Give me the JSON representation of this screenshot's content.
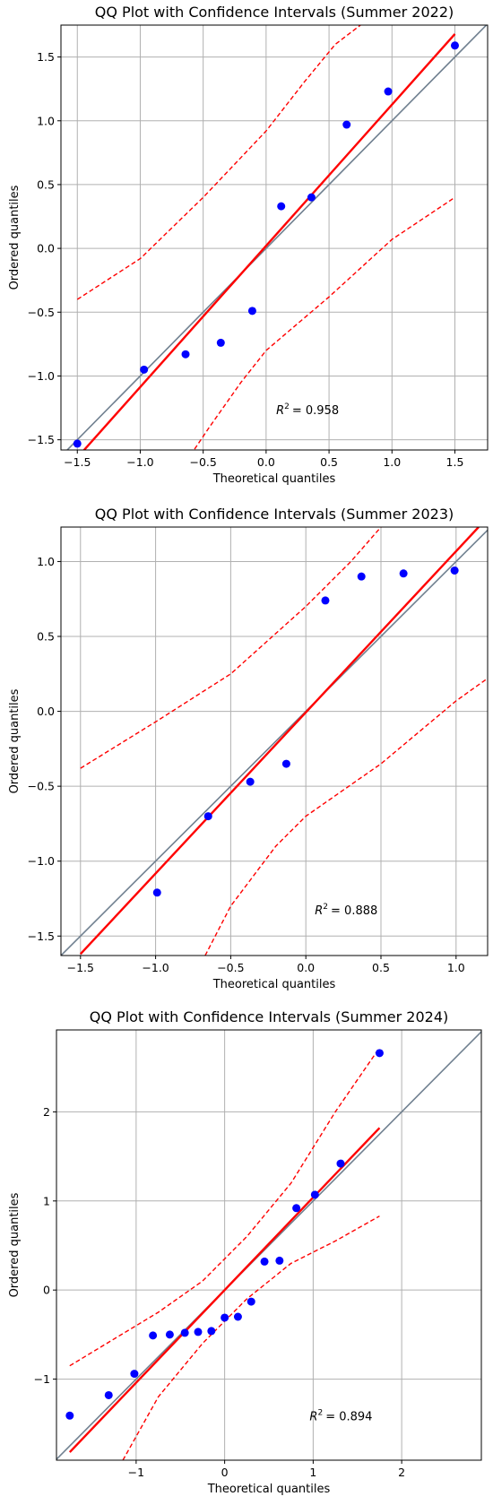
{
  "chart_data": [
    {
      "type": "scatter",
      "title": "QQ Plot with Confidence Intervals (Summer 2022)",
      "xlabel": "Theoretical quantiles",
      "ylabel": "Ordered quantiles",
      "annotation": {
        "prefix": "R",
        "sup": "2",
        "value": "= 0.958",
        "x": 0.08,
        "y": -1.27
      },
      "xlim": [
        -1.63,
        1.76
      ],
      "ylim": [
        -1.58,
        1.75
      ],
      "xticks": [
        -1.5,
        -1.0,
        -0.5,
        0.0,
        0.5,
        1.0,
        1.5
      ],
      "xtick_labels": [
        "−1.5",
        "−1.0",
        "−0.5",
        "0.0",
        "0.5",
        "1.0",
        "1.5"
      ],
      "yticks": [
        -1.5,
        -1.0,
        -0.5,
        0.0,
        0.5,
        1.0,
        1.5
      ],
      "ytick_labels": [
        "−1.5",
        "−1.0",
        "−0.5",
        "0.0",
        "0.5",
        "1.0",
        "1.5"
      ],
      "grid": true,
      "points": {
        "x": [
          -1.5,
          -0.97,
          -0.64,
          -0.36,
          -0.11,
          0.12,
          0.36,
          0.64,
          0.97,
          1.5
        ],
        "y": [
          -1.53,
          -0.95,
          -0.83,
          -0.74,
          -0.49,
          0.33,
          0.4,
          0.97,
          1.23,
          1.59
        ],
        "color": "#0000ff"
      },
      "reference_line": {
        "slope": 1,
        "intercept": 0,
        "color": "#708090"
      },
      "fit_line": {
        "x": [
          -1.5,
          1.5
        ],
        "y": [
          -1.64,
          1.68
        ],
        "color": "#ff0000"
      },
      "ci_upper": {
        "x": [
          -1.5,
          -1.0,
          -0.5,
          0.0,
          0.3,
          0.55,
          0.75
        ],
        "y": [
          -0.4,
          -0.08,
          0.4,
          0.92,
          1.3,
          1.6,
          1.75
        ],
        "color": "#ff0000"
      },
      "ci_lower": {
        "x": [
          -0.6,
          -0.45,
          -0.2,
          0.0,
          0.5,
          1.0,
          1.5
        ],
        "y": [
          -1.62,
          -1.4,
          -1.05,
          -0.8,
          -0.38,
          0.07,
          0.4
        ],
        "color": "#ff0000"
      }
    },
    {
      "type": "scatter",
      "title": "QQ Plot with Confidence Intervals (Summer 2023)",
      "xlabel": "Theoretical quantiles",
      "ylabel": "Ordered quantiles",
      "annotation": {
        "prefix": "R",
        "sup": "2",
        "value": "= 0.888",
        "x": 0.06,
        "y": -1.33
      },
      "xlim": [
        -1.63,
        1.21
      ],
      "ylim": [
        -1.63,
        1.23
      ],
      "xticks": [
        -1.5,
        -1.0,
        -0.5,
        0.0,
        0.5,
        1.0
      ],
      "xtick_labels": [
        "−1.5",
        "−1.0",
        "−0.5",
        "0.0",
        "0.5",
        "1.0"
      ],
      "yticks": [
        -1.5,
        -1.0,
        -0.5,
        0.0,
        0.5,
        1.0
      ],
      "ytick_labels": [
        "−1.5",
        "−1.0",
        "−0.5",
        "0.0",
        "0.5",
        "1.0"
      ],
      "grid": true,
      "points": {
        "x": [
          -0.99,
          -0.65,
          -0.37,
          -0.13,
          0.13,
          0.37,
          0.65,
          0.99
        ],
        "y": [
          -1.21,
          -0.7,
          -0.47,
          -0.35,
          0.74,
          0.9,
          0.92,
          0.94
        ],
        "color": "#0000ff"
      },
      "reference_line": {
        "slope": 1,
        "intercept": 0,
        "color": "#708090"
      },
      "fit_line": {
        "x": [
          -1.5,
          1.15
        ],
        "y": [
          -1.62,
          1.23
        ],
        "color": "#ff0000"
      },
      "ci_upper": {
        "x": [
          -1.5,
          -1.0,
          -0.5,
          0.0,
          0.3,
          0.5
        ],
        "y": [
          -0.38,
          -0.07,
          0.25,
          0.7,
          1.0,
          1.23
        ],
        "color": "#ff0000"
      },
      "ci_lower": {
        "x": [
          -0.67,
          -0.5,
          -0.2,
          0.0,
          0.5,
          1.0,
          1.21
        ],
        "y": [
          -1.63,
          -1.3,
          -0.9,
          -0.7,
          -0.35,
          0.07,
          0.22
        ],
        "color": "#ff0000"
      }
    },
    {
      "type": "scatter",
      "title": "QQ Plot with Confidence Intervals (Summer 2024)",
      "xlabel": "Theoretical quantiles",
      "ylabel": "Ordered quantiles",
      "annotation": {
        "prefix": "R",
        "sup": "2",
        "value": "= 0.894",
        "x": 0.96,
        "y": -1.42
      },
      "xlim": [
        -1.9,
        2.9
      ],
      "ylim": [
        -1.91,
        2.92
      ],
      "xticks": [
        -1,
        0,
        1,
        2
      ],
      "xtick_labels": [
        "−1",
        "0",
        "1",
        "2"
      ],
      "yticks": [
        -1,
        0,
        1,
        2
      ],
      "ytick_labels": [
        "−1",
        "0",
        "1",
        "2"
      ],
      "grid": true,
      "points": {
        "x": [
          -1.75,
          -1.31,
          -1.02,
          -0.81,
          -0.62,
          -0.45,
          -0.3,
          -0.15,
          0.0,
          0.15,
          0.3,
          0.45,
          0.62,
          0.81,
          1.02,
          1.31,
          1.75
        ],
        "y": [
          -1.41,
          -1.18,
          -0.94,
          -0.51,
          -0.5,
          -0.48,
          -0.47,
          -0.46,
          -0.31,
          -0.3,
          -0.13,
          0.32,
          0.33,
          0.92,
          1.07,
          1.42,
          2.66
        ],
        "color": "#0000ff"
      },
      "reference_line": {
        "slope": 1,
        "intercept": 0,
        "color": "#708090"
      },
      "fit_line": {
        "x": [
          -1.75,
          1.75
        ],
        "y": [
          -1.82,
          1.82
        ],
        "color": "#ff0000"
      },
      "ci_upper": {
        "x": [
          -1.75,
          -1.25,
          -0.75,
          -0.25,
          0.25,
          0.75,
          1.25,
          1.75
        ],
        "y": [
          -0.85,
          -0.55,
          -0.25,
          0.1,
          0.6,
          1.2,
          2.0,
          2.72
        ],
        "color": "#ff0000"
      },
      "ci_lower": {
        "x": [
          -1.15,
          -0.75,
          -0.25,
          0.25,
          0.75,
          1.25,
          1.75
        ],
        "y": [
          -1.91,
          -1.2,
          -0.6,
          -0.1,
          0.3,
          0.55,
          0.83
        ],
        "color": "#ff0000"
      }
    }
  ]
}
